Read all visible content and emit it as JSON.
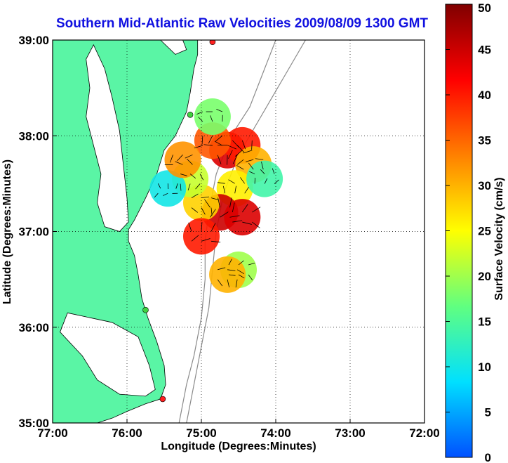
{
  "chart_data": {
    "type": "heatmap",
    "title": "Southern Mid-Atlantic Raw Velocities 2009/08/09 1300 GMT",
    "xlabel": "Longitude (Degrees:Minutes)",
    "ylabel": "Latitude (Degrees:Minutes)",
    "x_ticks": [
      {
        "value": -77,
        "label": "77:00"
      },
      {
        "value": -76,
        "label": "76:00"
      },
      {
        "value": -75,
        "label": "75:00"
      },
      {
        "value": -74,
        "label": "74:00"
      },
      {
        "value": -73,
        "label": "73:00"
      },
      {
        "value": -72,
        "label": "72:00"
      }
    ],
    "y_ticks": [
      {
        "value": 35,
        "label": "35:00"
      },
      {
        "value": 36,
        "label": "36:00"
      },
      {
        "value": 37,
        "label": "37:00"
      },
      {
        "value": 38,
        "label": "38:00"
      },
      {
        "value": 39,
        "label": "39:00"
      }
    ],
    "xlim": [
      -77,
      -72
    ],
    "ylim": [
      35,
      39
    ],
    "grid": "dotted",
    "colorbar": {
      "label": "Surface Velocity (cm/s)",
      "range": [
        0,
        50
      ],
      "ticks": [
        {
          "value": 0,
          "label": "0"
        },
        {
          "value": 5,
          "label": "5"
        },
        {
          "value": 10,
          "label": "10"
        },
        {
          "value": 15,
          "label": "15"
        },
        {
          "value": 20,
          "label": "20"
        },
        {
          "value": 25,
          "label": "25"
        },
        {
          "value": 30,
          "label": "30"
        },
        {
          "value": 35,
          "label": "35"
        },
        {
          "value": 40,
          "label": "40"
        },
        {
          "value": 45,
          "label": "45"
        },
        {
          "value": 50,
          "label": "50"
        }
      ],
      "colors": [
        "#0050ff",
        "#00e0ff",
        "#60ff80",
        "#ffff00",
        "#ff8000",
        "#ff0000",
        "#800000"
      ]
    },
    "land_color": "#5af5a5",
    "stations": [
      {
        "lon": -74.85,
        "lat": 38.98,
        "color": "#ff2020"
      },
      {
        "lon": -75.15,
        "lat": 38.22,
        "color": "#40d040"
      },
      {
        "lon": -75.75,
        "lat": 36.18,
        "color": "#40d040"
      },
      {
        "lon": -75.52,
        "lat": 35.25,
        "color": "#ff2020"
      }
    ],
    "velocity_field": [
      {
        "lon": -74.65,
        "lat": 37.85,
        "speed": 44
      },
      {
        "lon": -74.45,
        "lat": 37.9,
        "speed": 40
      },
      {
        "lon": -74.85,
        "lat": 37.95,
        "speed": 36
      },
      {
        "lon": -74.3,
        "lat": 37.7,
        "speed": 30
      },
      {
        "lon": -74.55,
        "lat": 37.45,
        "speed": 26
      },
      {
        "lon": -74.75,
        "lat": 37.2,
        "speed": 45
      },
      {
        "lon": -74.45,
        "lat": 37.15,
        "speed": 44
      },
      {
        "lon": -75.0,
        "lat": 37.3,
        "speed": 28
      },
      {
        "lon": -75.15,
        "lat": 37.55,
        "speed": 22
      },
      {
        "lon": -75.45,
        "lat": 37.45,
        "speed": 10
      },
      {
        "lon": -75.25,
        "lat": 37.75,
        "speed": 32
      },
      {
        "lon": -74.85,
        "lat": 38.2,
        "speed": 18
      },
      {
        "lon": -74.15,
        "lat": 37.55,
        "speed": 14
      },
      {
        "lon": -75.0,
        "lat": 36.95,
        "speed": 40
      },
      {
        "lon": -74.5,
        "lat": 36.6,
        "speed": 20
      },
      {
        "lon": -74.65,
        "lat": 36.55,
        "speed": 30
      }
    ]
  }
}
